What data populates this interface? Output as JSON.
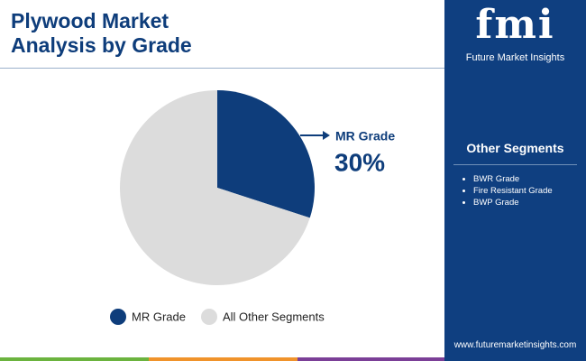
{
  "chart_data": {
    "type": "pie",
    "title": "Plywood Market Analysis by Grade",
    "categories": [
      "MR Grade",
      "All Other Segments"
    ],
    "values": [
      30,
      70
    ],
    "value_labels": [
      "30%",
      null
    ],
    "colors": [
      "#0e3d7b",
      "#dcdcdc"
    ]
  },
  "brand": {
    "logo": "fmi",
    "name": "Future Market Insights"
  },
  "other_segments": {
    "title": "Other Segments",
    "items": [
      "BWR Grade",
      "Fire Resistant Grade",
      "BWP Grade"
    ]
  },
  "website": "www.futuremarketinsights.com"
}
